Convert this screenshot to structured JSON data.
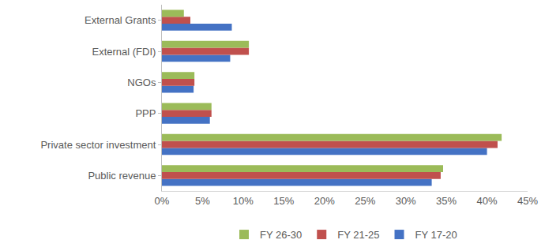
{
  "chart_data": {
    "type": "bar",
    "orientation": "horizontal",
    "categories": [
      "Public revenue",
      "Private sector investment",
      "PPP",
      "NGOs",
      "External (FDI)",
      "External Grants"
    ],
    "series": [
      {
        "name": "FY 17-20",
        "color": "#4472c4",
        "values": [
          33.2,
          40.0,
          5.9,
          3.9,
          8.4,
          8.6
        ]
      },
      {
        "name": "FY 21-25",
        "color": "#c0504d",
        "values": [
          34.3,
          41.3,
          6.1,
          4.0,
          10.7,
          3.5
        ]
      },
      {
        "name": "FY 26-30",
        "color": "#9bbb59",
        "values": [
          34.6,
          41.8,
          6.1,
          4.0,
          10.7,
          2.7
        ]
      }
    ],
    "xlim": [
      0,
      45
    ],
    "xticks": [
      {
        "value": 0,
        "label": "0%"
      },
      {
        "value": 5,
        "label": "5%"
      },
      {
        "value": 10,
        "label": "10%"
      },
      {
        "value": 15,
        "label": "15%"
      },
      {
        "value": 20,
        "label": "20%"
      },
      {
        "value": 25,
        "label": "25%"
      },
      {
        "value": 30,
        "label": "30%"
      },
      {
        "value": 35,
        "label": "35%"
      },
      {
        "value": 40,
        "label": "40%"
      },
      {
        "value": 45,
        "label": "45%"
      }
    ],
    "grid": false,
    "legend": "bottom"
  }
}
